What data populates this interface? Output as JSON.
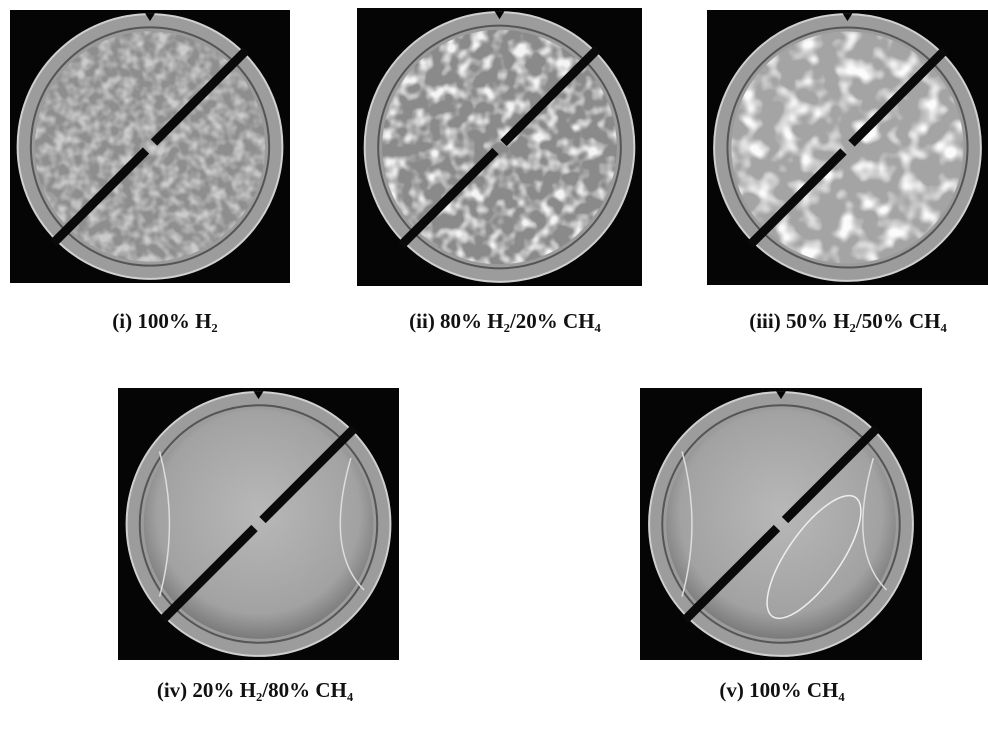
{
  "panels": [
    {
      "caption": "(i) 100% H₂"
    },
    {
      "caption": "(ii) 80% H₂/20% CH₄"
    },
    {
      "caption": "(iii) 50% H₂/50% CH₄"
    },
    {
      "caption": "(iv) 20% H₂/80% CH₄"
    },
    {
      "caption": "(v) 100% CH₄"
    }
  ]
}
